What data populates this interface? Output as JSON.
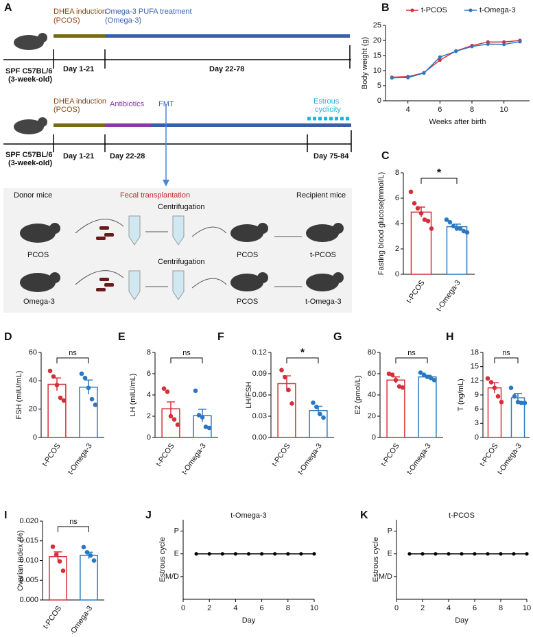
{
  "panel_a": {
    "label": "A",
    "timeline1": {
      "phase1": [
        "DHEA induction",
        "(PCOS)"
      ],
      "phase2": [
        "Omega-3 PUFA treatment",
        "(Omega-3)"
      ],
      "strain": [
        "SPF C57BL/6",
        "(3-week-old)"
      ],
      "days": [
        "Day 1-21",
        "Day 22-78"
      ]
    },
    "timeline2": {
      "phase1": [
        "DHEA induction",
        "(PCOS)"
      ],
      "antibiotics": "Antibiotics",
      "fmt": "FMT",
      "estrous": [
        "Estrous",
        "cyclicity"
      ],
      "strain": [
        "SPF C57BL/6",
        "(3-week-old)"
      ],
      "days": [
        "Day 1-21",
        "Day 22-28",
        "Day 75-84"
      ]
    },
    "transplant": {
      "donor": "Donor mice",
      "title": "Fecal transplantation",
      "recipient": "Recipient mice",
      "centrifugation": [
        "Centrifugation",
        "Centrifugation"
      ],
      "row1": [
        "PCOS",
        "PCOS",
        "t-PCOS"
      ],
      "row2": [
        "Omega-3",
        "PCOS",
        "t-Omega-3"
      ]
    }
  },
  "chart_data": [
    {
      "type": "line",
      "label": "B",
      "xlabel": "Weeks after birth",
      "ylabel": "Body weight (g)",
      "x": [
        3,
        4,
        5,
        6,
        7,
        8,
        9,
        10,
        11
      ],
      "series": [
        {
          "name": "t-PCOS",
          "color": "#d62f3a",
          "values": [
            7.8,
            8,
            9.3,
            13.5,
            16.5,
            18.3,
            19.5,
            19.5,
            20
          ]
        },
        {
          "name": "t-Omega-3",
          "color": "#2a78c2",
          "values": [
            7.6,
            7.7,
            9.2,
            14.5,
            16.4,
            18,
            18.8,
            18.7,
            19.6
          ]
        }
      ],
      "xlim": [
        2.6,
        11.6
      ],
      "xticks": [
        4,
        6,
        8,
        10
      ],
      "ylim": [
        0,
        25
      ],
      "yticks": [
        0,
        5,
        10,
        15,
        20,
        25
      ],
      "legend": "top"
    },
    {
      "type": "bar",
      "label": "C",
      "ylabel": "Fasting blood glucose(mmol/L)",
      "categories": [
        "t-PCOS",
        "t-Omega-3"
      ],
      "colors": [
        "#d62f3a",
        "#2a78c2"
      ],
      "values": [
        4.9,
        3.75
      ],
      "errors": [
        0.4,
        0.2
      ],
      "points": [
        [
          6.5,
          5.6,
          5.2,
          4.8,
          4.3,
          4.2,
          3.6
        ],
        [
          4.3,
          4.1,
          3.8,
          3.6,
          3.6,
          3.4,
          3.3
        ]
      ],
      "ylim": [
        0,
        8
      ],
      "yticks": [
        0,
        2,
        4,
        6,
        8
      ],
      "annotation": "*"
    },
    {
      "type": "bar",
      "label": "D",
      "ylabel": "FSH (mIU/mL)",
      "categories": [
        "t-PCOS",
        "t-Omega-3"
      ],
      "colors": [
        "#d62f3a",
        "#2a78c2"
      ],
      "values": [
        37.5,
        35.5
      ],
      "errors": [
        4.5,
        5
      ],
      "points": [
        [
          47,
          43,
          37,
          28,
          26
        ],
        [
          45,
          42,
          35,
          27,
          23
        ]
      ],
      "ylim": [
        0,
        60
      ],
      "yticks": [
        0,
        20,
        40,
        60
      ],
      "annotation": "ns"
    },
    {
      "type": "bar",
      "label": "E",
      "ylabel": "LH  (mIU/mL)",
      "categories": [
        "t-PCOS",
        "t-Omega-3"
      ],
      "colors": [
        "#d62f3a",
        "#2a78c2"
      ],
      "values": [
        2.7,
        2.05
      ],
      "errors": [
        0.65,
        0.6
      ],
      "points": [
        [
          4.6,
          4.3,
          2,
          1.7,
          1.2
        ],
        [
          4.4,
          2.1,
          1.9,
          1,
          0.9
        ]
      ],
      "ylim": [
        0,
        8
      ],
      "yticks": [
        0,
        2,
        4,
        6,
        8
      ],
      "annotation": "ns"
    },
    {
      "type": "bar",
      "label": "F",
      "ylabel": "LH/FSH",
      "categories": [
        "t-PCOS",
        "t-Omega-3"
      ],
      "colors": [
        "#d62f3a",
        "#2a78c2"
      ],
      "values": [
        0.076,
        0.038
      ],
      "errors": [
        0.011,
        0.006
      ],
      "points": [
        [
          0.095,
          0.085,
          0.067,
          0.048
        ],
        [
          0.049,
          0.043,
          0.033,
          0.028
        ]
      ],
      "ylim": [
        0,
        0.12
      ],
      "yticks": [
        {
          "value": 0,
          "label": "0.00"
        },
        {
          "value": 0.03,
          "label": "0.03"
        },
        {
          "value": 0.06,
          "label": "0.06"
        },
        {
          "value": 0.09,
          "label": "0.09"
        },
        {
          "value": 0.12,
          "label": "0.12"
        }
      ],
      "annotation": "*"
    },
    {
      "type": "bar",
      "label": "G",
      "ylabel": "E2 (pmol/L)",
      "categories": [
        "t-PCOS",
        "t-Omega-3"
      ],
      "colors": [
        "#d62f3a",
        "#2a78c2"
      ],
      "values": [
        54,
        57
      ],
      "errors": [
        3,
        1.5
      ],
      "points": [
        [
          60,
          59,
          54,
          48,
          47
        ],
        [
          61,
          59,
          57,
          56,
          54
        ]
      ],
      "ylim": [
        0,
        80
      ],
      "yticks": [
        0,
        20,
        40,
        60,
        80
      ],
      "annotation": "ns"
    },
    {
      "type": "bar",
      "label": "H",
      "ylabel": "T (ng/mL)",
      "categories": [
        "t-PCOS",
        "t-Omega-3"
      ],
      "colors": [
        "#d62f3a",
        "#2a78c2"
      ],
      "values": [
        10.5,
        8.4
      ],
      "errors": [
        1.1,
        0.9
      ],
      "points": [
        [
          12.5,
          11.7,
          10.5,
          8.7,
          7.5
        ],
        [
          10.5,
          8.7,
          7.5,
          7.3,
          7.3
        ]
      ],
      "ylim": [
        0,
        18
      ],
      "yticks": [
        0,
        3,
        6,
        9,
        12,
        15,
        18
      ],
      "annotation": "ns"
    },
    {
      "type": "bar",
      "label": "I",
      "ylabel": "Ovarian Index (%)",
      "categories": [
        "t-PCOS",
        "t-Omega-3"
      ],
      "colors": [
        "#d62f3a",
        "#2a78c2"
      ],
      "values": [
        0.011,
        0.0113
      ],
      "errors": [
        0.0012,
        0.0008
      ],
      "points": [
        [
          0.0135,
          0.0115,
          0.0098,
          0.0074
        ],
        [
          0.0134,
          0.0121,
          0.0113,
          0.01
        ]
      ],
      "ylim": [
        0,
        0.02
      ],
      "yticks": [
        {
          "value": 0,
          "label": "0.000"
        },
        {
          "value": 0.005,
          "label": "0.005"
        },
        {
          "value": 0.01,
          "label": "0.010"
        },
        {
          "value": 0.015,
          "label": "0.015"
        },
        {
          "value": 0.02,
          "label": "0.020"
        }
      ],
      "annotation": "ns"
    },
    {
      "type": "line",
      "label": "J",
      "title": "t-Omega-3",
      "xlabel": "Day",
      "ylabel": "Estrous cycle",
      "x": [
        1,
        2,
        3,
        4,
        5,
        6,
        7,
        8,
        9,
        10
      ],
      "series": [
        {
          "color": "#000000",
          "values": [
            2,
            2,
            2,
            2,
            2,
            2,
            2,
            2,
            2,
            2
          ]
        }
      ],
      "xlim": [
        0,
        10
      ],
      "xticks": [
        0,
        2,
        4,
        6,
        8,
        10
      ],
      "ylim": [
        0,
        3.5
      ],
      "yticks": [
        {
          "value": 1,
          "label": "M/D"
        },
        {
          "value": 2,
          "label": "E"
        },
        {
          "value": 3,
          "label": "P"
        }
      ]
    },
    {
      "type": "line",
      "label": "K",
      "title": "t-PCOS",
      "xlabel": "Day",
      "ylabel": "Estrous cycle",
      "x": [
        1,
        2,
        3,
        4,
        5,
        6,
        7,
        8,
        9,
        10
      ],
      "series": [
        {
          "color": "#000000",
          "values": [
            2,
            2,
            2,
            2,
            2,
            2,
            2,
            2,
            2,
            2
          ]
        }
      ],
      "xlim": [
        0,
        10
      ],
      "xticks": [
        0,
        2,
        4,
        6,
        8,
        10
      ],
      "ylim": [
        0,
        3.5
      ],
      "yticks": [
        {
          "value": 1,
          "label": "M/D"
        },
        {
          "value": 2,
          "label": "E"
        },
        {
          "value": 3,
          "label": "P"
        }
      ]
    }
  ]
}
